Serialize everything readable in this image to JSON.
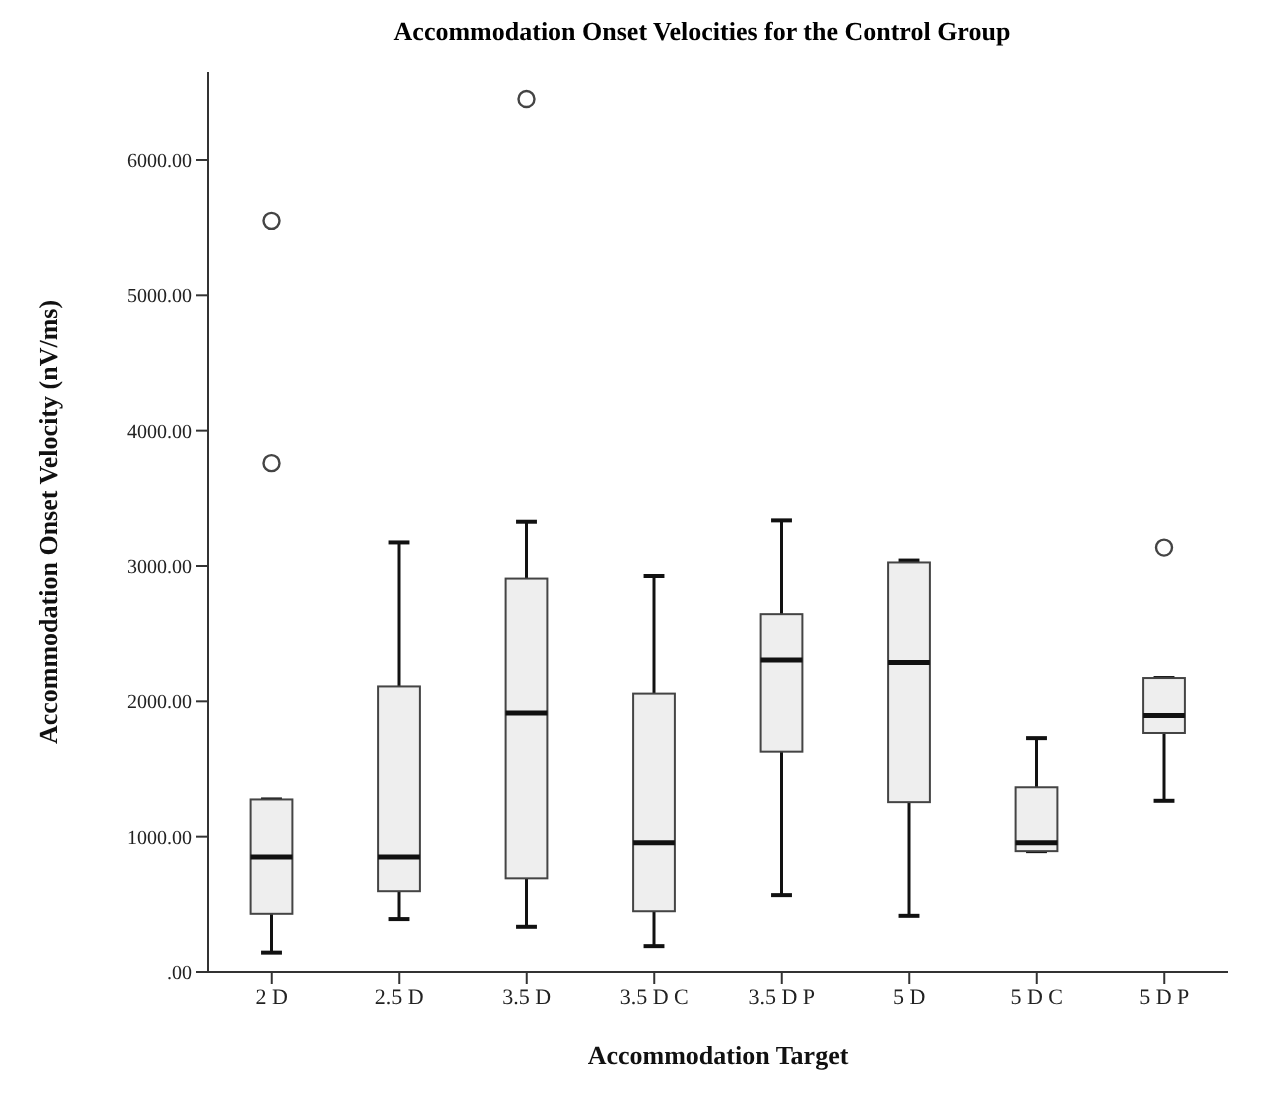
{
  "chart_data": {
    "type": "box",
    "title": "Accommodation Onset Velocities for the Control Group",
    "xlabel": "Accommodation Target",
    "ylabel": "Accommodation Onset Velocity (nV/ms)",
    "categories": [
      "2 D",
      "2.5 D",
      "3.5 D",
      "3.5 D C",
      "3.5 D P",
      "5 D",
      "5 D C",
      "5 D P"
    ],
    "ylim": [
      0,
      6650
    ],
    "yticks": [
      {
        "value": 0,
        "label": ".00"
      },
      {
        "value": 1000,
        "label": "1000.00"
      },
      {
        "value": 2000,
        "label": "2000.00"
      },
      {
        "value": 3000,
        "label": "3000.00"
      },
      {
        "value": 4000,
        "label": "4000.00"
      },
      {
        "value": 5000,
        "label": "5000.00"
      },
      {
        "value": 6000,
        "label": "6000.00"
      }
    ],
    "grid": false,
    "legend": false,
    "series": [
      {
        "color": "#eeeeee",
        "boxes": [
          {
            "low": 143,
            "q1": 430,
            "median": 850,
            "q3": 1275,
            "high": 1275,
            "outliers": [
              3760,
              5550
            ]
          },
          {
            "low": 391,
            "q1": 597,
            "median": 850,
            "q3": 2110,
            "high": 3174
          },
          {
            "low": 334,
            "q1": 692,
            "median": 1914,
            "q3": 2907,
            "high": 3327,
            "outliers": [
              6450
            ]
          },
          {
            "low": 191,
            "q1": 449,
            "median": 955,
            "q3": 2057,
            "high": 2926
          },
          {
            "low": 568,
            "q1": 1628,
            "median": 2305,
            "q3": 2644,
            "high": 3337
          },
          {
            "low": 415,
            "q1": 1255,
            "median": 2286,
            "q3": 3026,
            "high": 3040
          },
          {
            "low": 893,
            "q1": 893,
            "median": 955,
            "q3": 1365,
            "high": 1728
          },
          {
            "low": 1265,
            "q1": 1766,
            "median": 1895,
            "q3": 2172,
            "high": 2172,
            "outliers": [
              3136
            ]
          }
        ]
      }
    ]
  }
}
